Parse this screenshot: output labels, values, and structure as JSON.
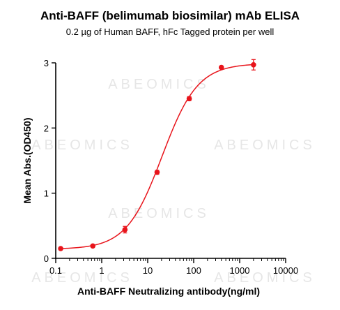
{
  "title": "Anti-BAFF (belimumab biosimilar) mAb ELISA",
  "subtitle": "0.2 µg of Human BAFF, hFc Tagged protein per well",
  "watermark_text": "ABEOMICS",
  "colors": {
    "series": "#e8141b",
    "axis": "#000000",
    "watermark": "#c8c8c8"
  },
  "chart_data": {
    "type": "scatter",
    "xlabel": "Anti-BAFF Neutralizing antibody(ng/ml)",
    "ylabel": "Mean Abs.(OD450)",
    "x_scale": "log",
    "xlim": [
      0.1,
      10000
    ],
    "ylim": [
      0,
      3
    ],
    "x_ticks": [
      0.1,
      1,
      10,
      100,
      1000,
      10000
    ],
    "x_tick_labels": [
      "0.1",
      "1",
      "10",
      "100",
      "1000",
      "10000"
    ],
    "y_ticks": [
      0,
      1,
      2,
      3
    ],
    "y_tick_labels": [
      "0",
      "1",
      "2",
      "3"
    ],
    "grid": false,
    "legend": "none",
    "series": [
      {
        "x": [
          0.128,
          0.64,
          3.2,
          16,
          80,
          400,
          2000
        ],
        "y": [
          0.15,
          0.19,
          0.44,
          1.32,
          2.45,
          2.93,
          2.97
        ],
        "error": [
          0.02,
          0.02,
          0.05,
          0.03,
          0.03,
          0.02,
          0.08
        ],
        "fit": "4PL"
      }
    ]
  }
}
